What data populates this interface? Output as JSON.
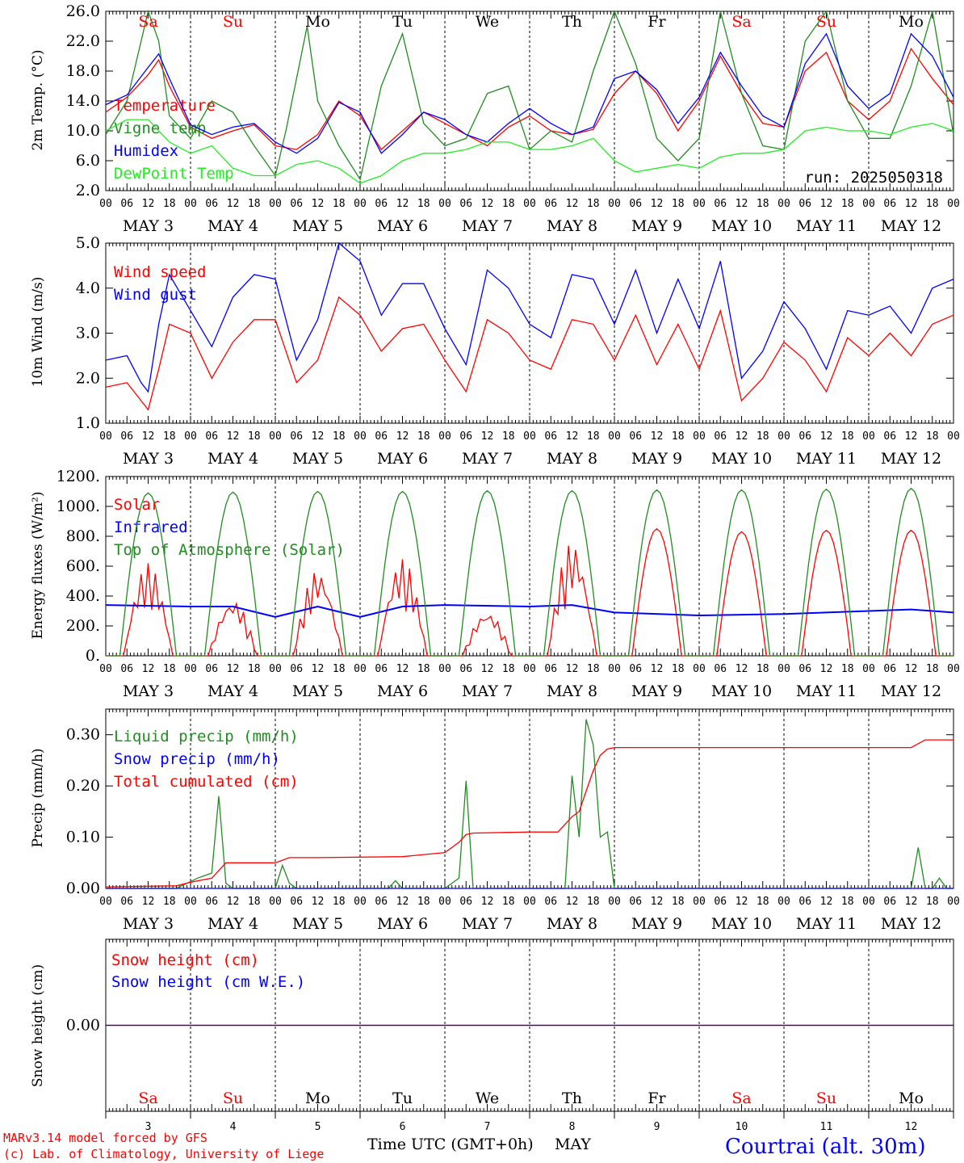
{
  "title": "Courtrai (alt. 30m)",
  "credits": [
    "MARv3.14 model forced by GFS",
    "(c) Lab. of Climatology, University of Liege"
  ],
  "run_label": "run: 2025050318",
  "x_axis_label": "Time UTC (GMT+0h)",
  "x_month": "MAY",
  "hour_ticks": [
    "00",
    "06",
    "12",
    "18"
  ],
  "days": [
    {
      "date": "MAY  3",
      "num": "3",
      "dow": "Sa",
      "weekend": true
    },
    {
      "date": "MAY  4",
      "num": "4",
      "dow": "Su",
      "weekend": true
    },
    {
      "date": "MAY  5",
      "num": "5",
      "dow": "Mo",
      "weekend": false
    },
    {
      "date": "MAY  6",
      "num": "6",
      "dow": "Tu",
      "weekend": false
    },
    {
      "date": "MAY  7",
      "num": "7",
      "dow": "We",
      "weekend": false
    },
    {
      "date": "MAY  8",
      "num": "8",
      "dow": "Th",
      "weekend": false
    },
    {
      "date": "MAY  9",
      "num": "9",
      "dow": "Fr",
      "weekend": false
    },
    {
      "date": "MAY 10",
      "num": "10",
      "dow": "Sa",
      "weekend": true
    },
    {
      "date": "MAY 11",
      "num": "11",
      "dow": "Su",
      "weekend": true
    },
    {
      "date": "MAY 12",
      "num": "12",
      "dow": "Mo",
      "weekend": false
    }
  ],
  "colors": {
    "red": "#ff0000",
    "darkgreen": "#228b22",
    "blue": "#0000ff",
    "lightgreen": "#22ee22",
    "dow_red": "#ff0000",
    "dow_black": "#000000",
    "title": "#0000ff"
  },
  "chart_data": [
    {
      "type": "line",
      "ylabel": "2m Temp. (°C)",
      "ylim": [
        2.0,
        26.0
      ],
      "yticks": [
        "2.0",
        "6.0",
        "10.0",
        "14.0",
        "18.0",
        "22.0",
        "26.0"
      ],
      "x_unit": "hours since 2025-05-03 00 UTC",
      "series": [
        {
          "name": "Temperature",
          "color": "red",
          "x": [
            0,
            6,
            12,
            15,
            18,
            24,
            30,
            36,
            42,
            48,
            54,
            60,
            66,
            72,
            78,
            84,
            90,
            96,
            102,
            108,
            114,
            120,
            126,
            132,
            138,
            144,
            150,
            156,
            162,
            168,
            174,
            180,
            186,
            192,
            198,
            204,
            210,
            216,
            222,
            228,
            234,
            240
          ],
          "y": [
            12.5,
            14.5,
            17.5,
            19.5,
            16,
            10.5,
            9,
            10,
            10.8,
            8,
            7.5,
            9.5,
            14,
            12,
            7.5,
            10,
            12.5,
            11,
            9.5,
            8,
            10.5,
            12,
            10,
            9.5,
            10.2,
            15,
            18,
            15,
            10,
            14,
            20,
            15,
            11,
            10.5,
            18,
            20.5,
            14,
            11.5,
            14,
            21,
            17,
            13.5
          ]
        },
        {
          "name": "Vigne temp",
          "color": "darkgreen",
          "x": [
            0,
            6,
            9,
            12,
            15,
            18,
            24,
            30,
            36,
            42,
            48,
            51,
            54,
            57,
            60,
            66,
            72,
            78,
            84,
            90,
            96,
            102,
            108,
            114,
            120,
            126,
            132,
            138,
            144,
            150,
            156,
            162,
            168,
            174,
            180,
            186,
            192,
            198,
            204,
            210,
            216,
            222,
            228,
            234,
            240
          ],
          "y": [
            9.5,
            14,
            20,
            26,
            22,
            12,
            9,
            14,
            12.5,
            8,
            4,
            10,
            17,
            24,
            14,
            8,
            3.5,
            16,
            23,
            11,
            8,
            9,
            15,
            16,
            7.5,
            10,
            8.5,
            18,
            26,
            19,
            9,
            6,
            9,
            26,
            15,
            8,
            7.5,
            22,
            26,
            14,
            9,
            9,
            16,
            26,
            9.5
          ]
        },
        {
          "name": "Humidex",
          "color": "blue",
          "x": [
            0,
            6,
            12,
            15,
            18,
            24,
            30,
            36,
            42,
            48,
            54,
            60,
            66,
            72,
            78,
            84,
            90,
            96,
            102,
            108,
            114,
            120,
            126,
            132,
            138,
            144,
            150,
            156,
            162,
            168,
            174,
            180,
            186,
            192,
            198,
            204,
            210,
            216,
            222,
            228,
            234,
            240
          ],
          "y": [
            13.5,
            14.8,
            18.5,
            20.3,
            17,
            10.8,
            9.5,
            10.5,
            11,
            8.5,
            7,
            9,
            13.8,
            12.5,
            7,
            9.5,
            12.5,
            11.5,
            9.5,
            8.5,
            11,
            13,
            11,
            9.5,
            10.5,
            17,
            18,
            15.5,
            11,
            14.5,
            20.5,
            16,
            12,
            10.5,
            19,
            23,
            16,
            13,
            15,
            23,
            20,
            14.5
          ]
        },
        {
          "name": "DewPoint Temp",
          "color": "lightgreen",
          "x": [
            0,
            6,
            12,
            18,
            24,
            30,
            36,
            42,
            48,
            54,
            60,
            66,
            72,
            78,
            84,
            90,
            96,
            102,
            108,
            114,
            120,
            126,
            132,
            138,
            144,
            150,
            156,
            162,
            168,
            174,
            180,
            186,
            192,
            198,
            204,
            210,
            216,
            222,
            228,
            234,
            240
          ],
          "y": [
            10,
            11.5,
            11.5,
            8.5,
            7,
            8,
            5,
            4,
            4,
            5.5,
            6,
            5,
            3,
            4,
            6,
            7,
            7,
            7.5,
            8.5,
            8.5,
            7.5,
            7.5,
            8,
            9,
            6,
            4.5,
            5,
            5.5,
            5,
            6.5,
            7,
            7,
            7.5,
            10,
            10.5,
            10,
            10,
            9.5,
            10.5,
            11,
            10
          ]
        }
      ]
    },
    {
      "type": "line",
      "ylabel": "10m Wind (m/s)",
      "ylim": [
        1.0,
        5.0
      ],
      "yticks": [
        "1.0",
        "2.0",
        "3.0",
        "4.0",
        "5.0"
      ],
      "series": [
        {
          "name": "Wind speed",
          "color": "red",
          "x": [
            0,
            6,
            10,
            12,
            15,
            18,
            24,
            30,
            36,
            42,
            48,
            54,
            60,
            66,
            72,
            78,
            84,
            90,
            96,
            102,
            108,
            114,
            120,
            126,
            132,
            138,
            144,
            150,
            156,
            162,
            168,
            174,
            180,
            186,
            192,
            198,
            204,
            210,
            216,
            222,
            228,
            234,
            240
          ],
          "y": [
            1.8,
            1.9,
            1.5,
            1.3,
            2.2,
            3.2,
            3.0,
            2.0,
            2.8,
            3.3,
            3.3,
            1.9,
            2.4,
            3.8,
            3.4,
            2.6,
            3.1,
            3.2,
            2.4,
            1.7,
            3.3,
            3.0,
            2.4,
            2.2,
            3.3,
            3.2,
            2.4,
            3.4,
            2.3,
            3.2,
            2.2,
            3.5,
            1.5,
            2.0,
            2.8,
            2.4,
            1.7,
            2.9,
            2.5,
            3.0,
            2.5,
            3.2,
            3.4
          ]
        },
        {
          "name": "Wind gust",
          "color": "blue",
          "x": [
            0,
            6,
            10,
            12,
            15,
            18,
            24,
            30,
            36,
            42,
            48,
            54,
            60,
            66,
            72,
            78,
            84,
            90,
            96,
            102,
            108,
            114,
            120,
            126,
            132,
            138,
            144,
            150,
            156,
            162,
            168,
            174,
            180,
            186,
            192,
            198,
            204,
            210,
            216,
            222,
            228,
            234,
            240
          ],
          "y": [
            2.4,
            2.5,
            1.9,
            1.7,
            3.2,
            4.3,
            3.5,
            2.7,
            3.8,
            4.3,
            4.2,
            2.4,
            3.3,
            5.0,
            4.6,
            3.4,
            4.1,
            4.1,
            3.1,
            2.3,
            4.4,
            4.0,
            3.2,
            2.9,
            4.3,
            4.2,
            3.2,
            4.4,
            3.0,
            4.2,
            3.1,
            4.6,
            2.0,
            2.6,
            3.7,
            3.1,
            2.2,
            3.5,
            3.4,
            3.6,
            3.0,
            4.0,
            4.2
          ]
        }
      ]
    },
    {
      "type": "line",
      "ylabel": "Energy fluxes (W/m²)",
      "ylim": [
        0,
        1200
      ],
      "yticks": [
        "0.",
        "200.",
        "400.",
        "600.",
        "800.",
        "1000.",
        "1200."
      ],
      "series": [
        {
          "name": "Solar",
          "color": "red",
          "daily_peak": [
            620,
            380,
            580,
            650,
            300,
            760,
            850,
            830,
            840,
            840
          ]
        },
        {
          "name": "Infrared",
          "color": "blue",
          "x": [
            0,
            24,
            36,
            48,
            60,
            72,
            84,
            96,
            120,
            132,
            144,
            168,
            192,
            216,
            228,
            240
          ],
          "y": [
            340,
            330,
            330,
            260,
            330,
            260,
            330,
            340,
            330,
            340,
            290,
            270,
            280,
            300,
            310,
            290
          ]
        },
        {
          "name": "Top of Atmosphere (Solar)",
          "color": "darkgreen",
          "daily_peak": [
            1090,
            1095,
            1100,
            1100,
            1105,
            1105,
            1110,
            1110,
            1115,
            1120
          ]
        }
      ]
    },
    {
      "type": "line",
      "ylabel": "Precip (mm/h)",
      "ylim": [
        0.0,
        0.35
      ],
      "yticks": [
        "0.00",
        "0.10",
        "0.20",
        "0.30"
      ],
      "series": [
        {
          "name": "Liquid precip (mm/h)",
          "color": "darkgreen",
          "x": [
            0,
            20,
            26,
            30,
            32,
            34,
            36,
            40,
            48,
            50,
            52,
            54,
            60,
            80,
            82,
            84,
            96,
            100,
            102,
            104,
            106,
            108,
            110,
            120,
            130,
            132,
            134,
            136,
            138,
            140,
            142,
            144,
            168,
            228,
            230,
            232,
            234,
            236,
            238,
            240
          ],
          "y": [
            0,
            0,
            0.02,
            0.03,
            0.18,
            0.01,
            0,
            0,
            0,
            0.045,
            0.01,
            0,
            0,
            0,
            0.015,
            0,
            0,
            0.02,
            0.21,
            0,
            0,
            0,
            0,
            0,
            0,
            0.22,
            0.1,
            0.33,
            0.28,
            0.1,
            0.11,
            0,
            0,
            0,
            0.08,
            0,
            0,
            0.02,
            0,
            0
          ]
        },
        {
          "name": "Snow precip (mm/h)",
          "color": "blue",
          "x": [
            0,
            240
          ],
          "y": [
            0,
            0
          ]
        },
        {
          "name": "Total cumulated (cm)",
          "color": "red",
          "x": [
            0,
            20,
            24,
            30,
            34,
            48,
            52,
            60,
            84,
            96,
            100,
            102,
            104,
            120,
            128,
            132,
            134,
            136,
            138,
            140,
            142,
            144,
            228,
            232,
            240
          ],
          "y": [
            0.003,
            0.005,
            0.012,
            0.02,
            0.05,
            0.05,
            0.06,
            0.06,
            0.062,
            0.07,
            0.09,
            0.105,
            0.108,
            0.11,
            0.11,
            0.14,
            0.15,
            0.19,
            0.23,
            0.26,
            0.272,
            0.275,
            0.275,
            0.29,
            0.29
          ]
        }
      ]
    },
    {
      "type": "line",
      "ylabel": "Snow height (cm)",
      "ylim": [
        -1,
        1
      ],
      "yticks": [
        "0.00"
      ],
      "series": [
        {
          "name": "Snow height (cm)",
          "color": "red",
          "x": [
            0,
            240
          ],
          "y": [
            0,
            0
          ]
        },
        {
          "name": "Snow height (cm W.E.)",
          "color": "blue",
          "x": [
            0,
            240
          ],
          "y": [
            0,
            0
          ]
        }
      ]
    }
  ]
}
